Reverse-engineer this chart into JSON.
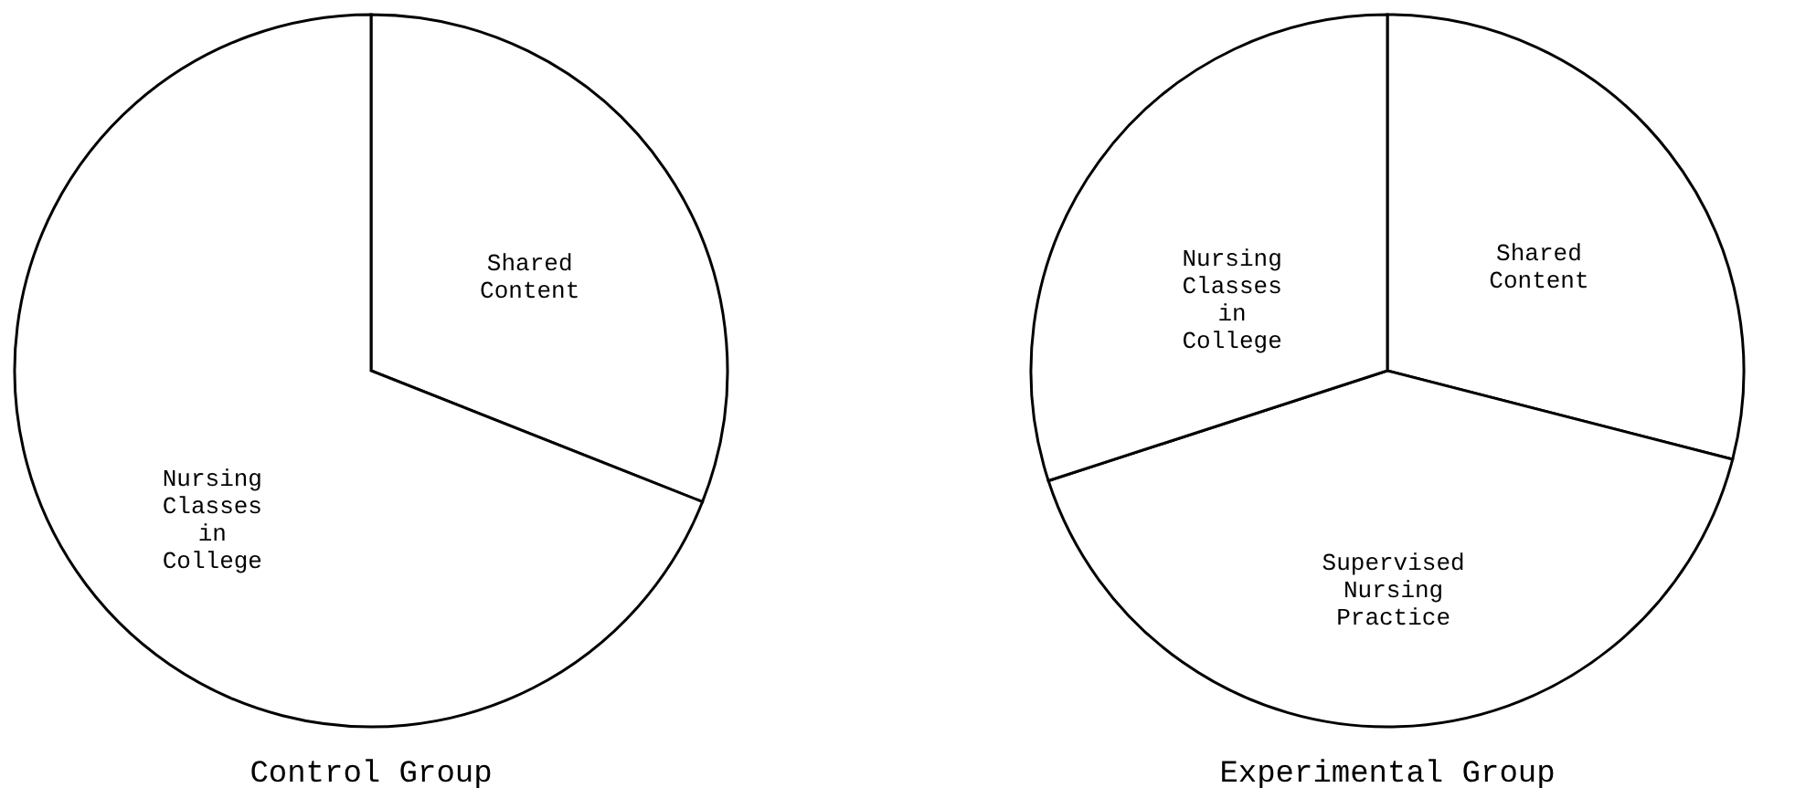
{
  "chart_data": [
    {
      "type": "pie",
      "title": "Control Group",
      "categories": [
        "Shared Content",
        "Nursing Classes in College"
      ],
      "values": [
        31,
        69
      ],
      "colors": [
        "#ffffff",
        "#ffffff"
      ],
      "legend": false
    },
    {
      "type": "pie",
      "title": "Experimental Group",
      "categories": [
        "Shared Content",
        "Supervised Nursing Practice",
        "Nursing Classes in College"
      ],
      "values": [
        29,
        41,
        30
      ],
      "colors": [
        "#ffffff",
        "#ffffff",
        "#ffffff"
      ],
      "legend": false
    }
  ]
}
